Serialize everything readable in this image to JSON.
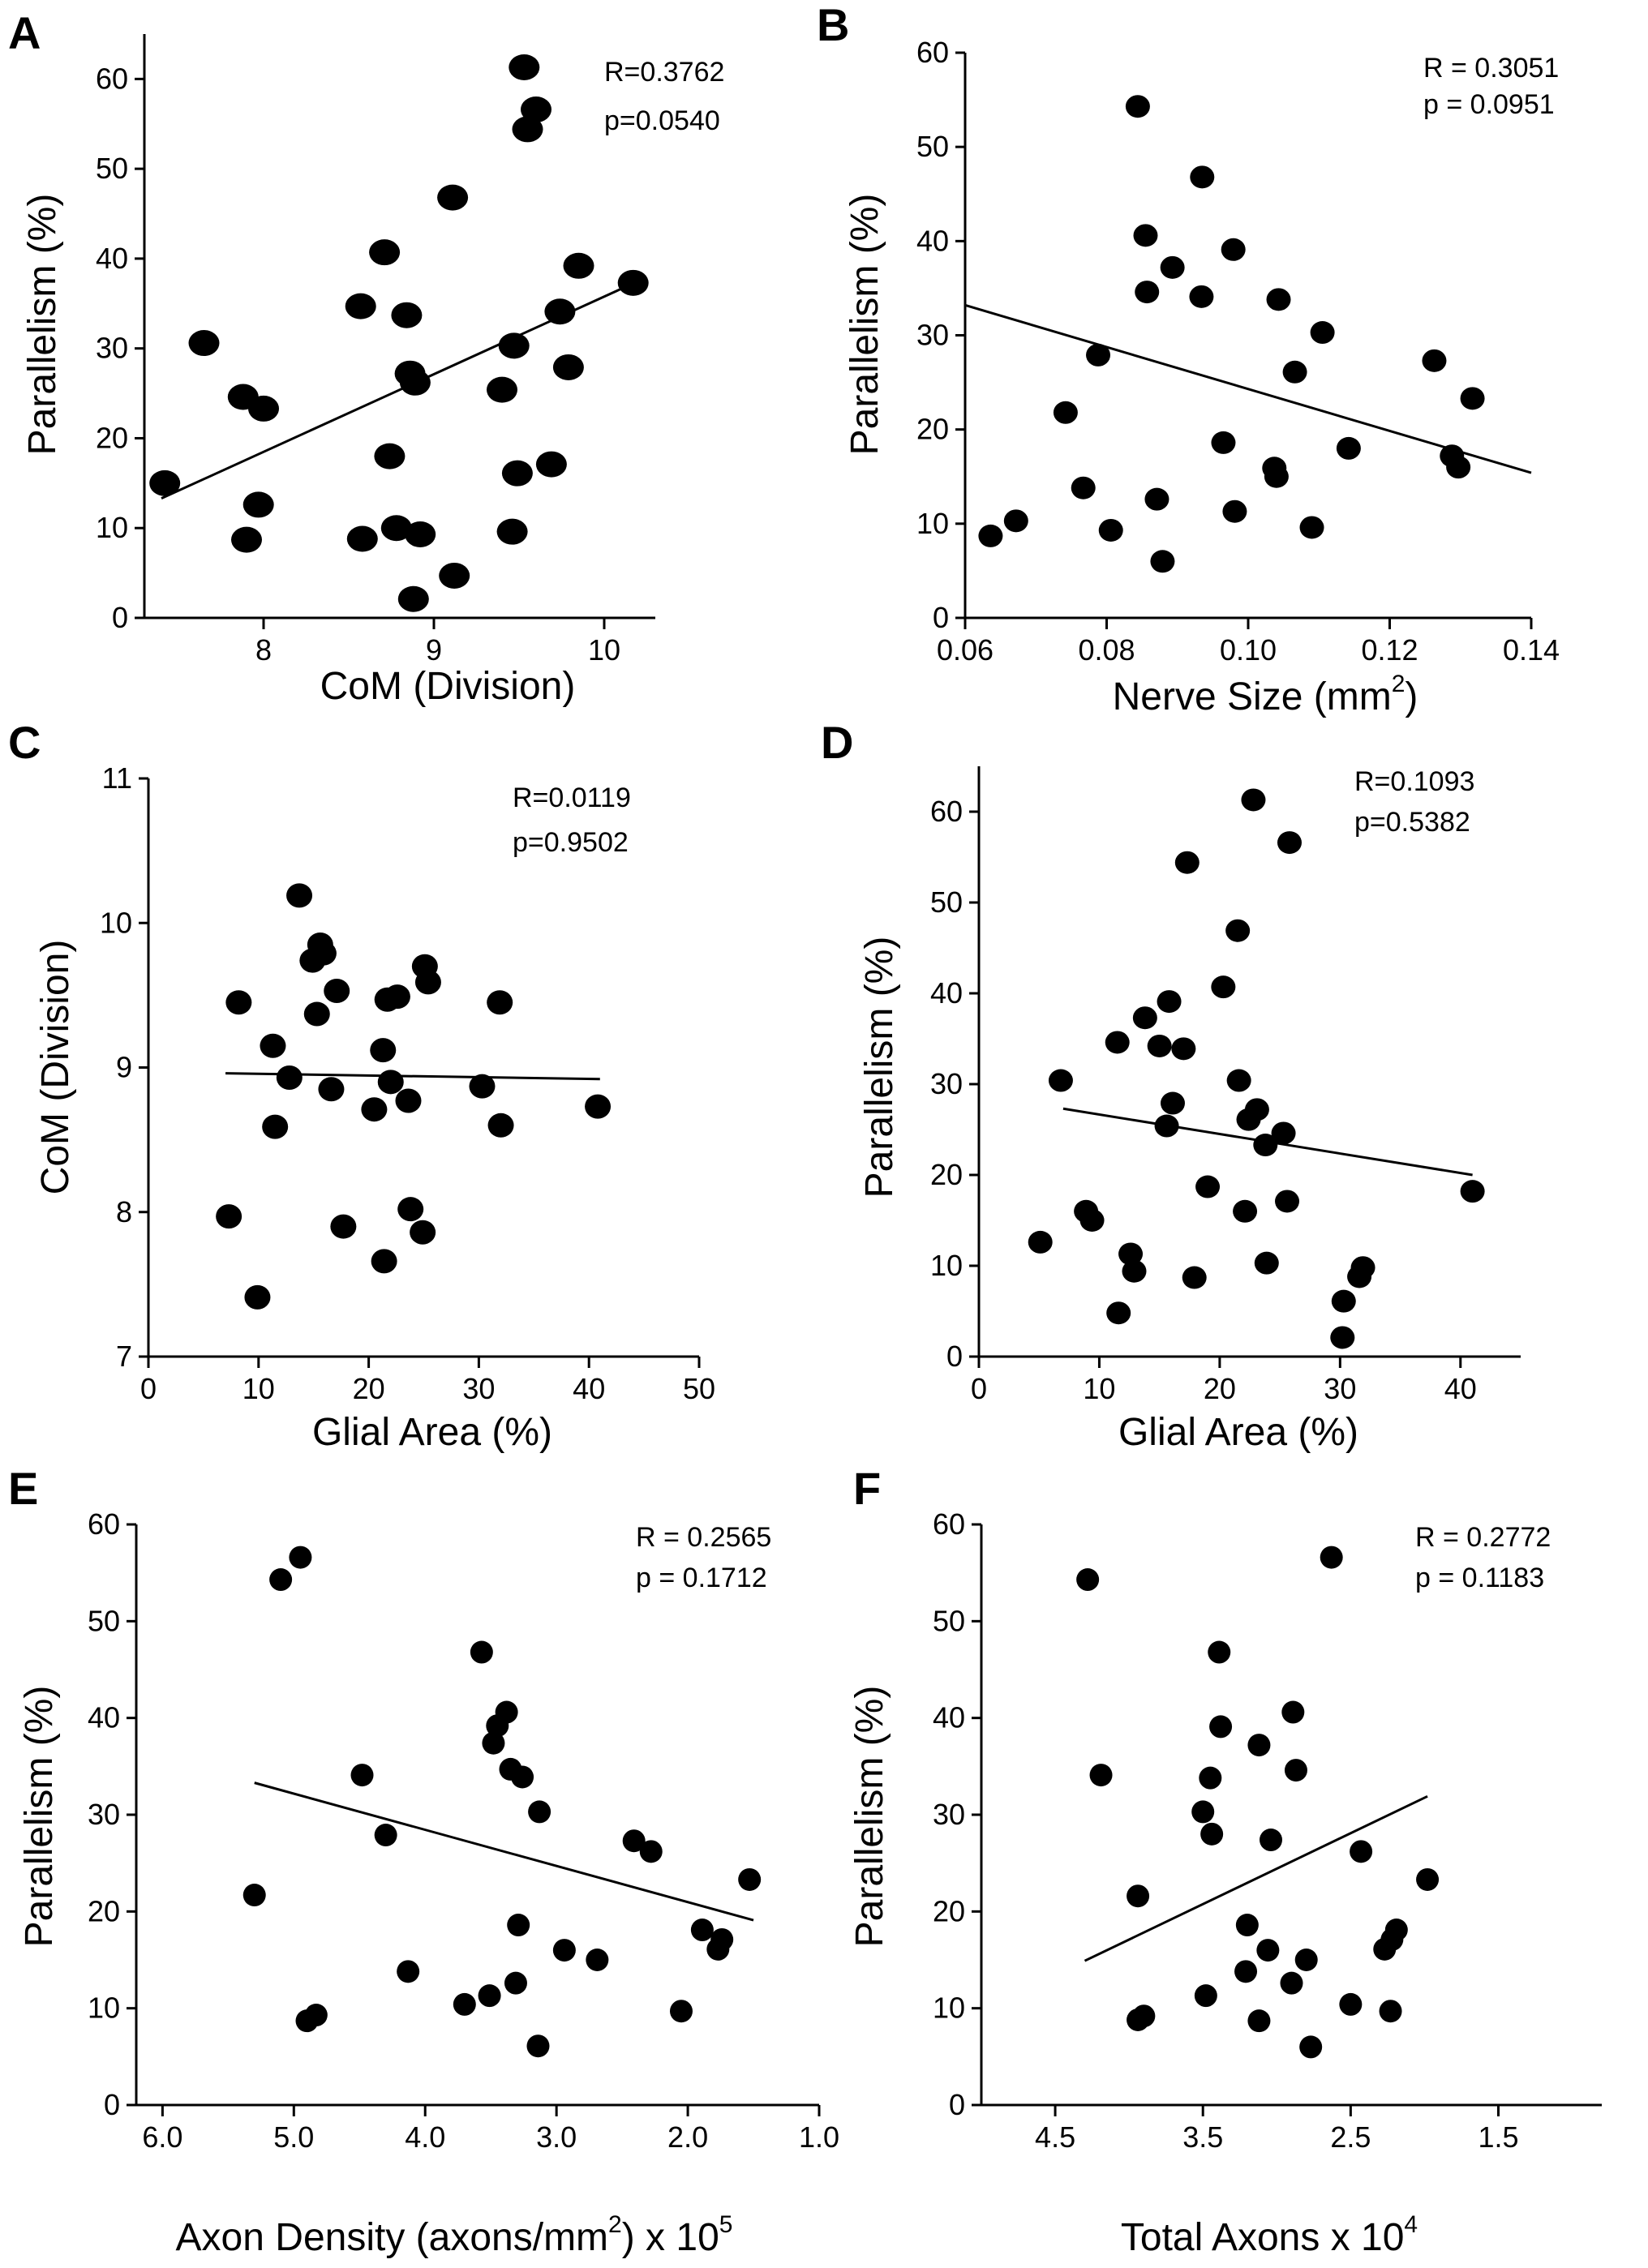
{
  "chart_data": [
    {
      "id": "A",
      "type": "scatter",
      "panel_label": "A",
      "xlabel": "CoM (Division)",
      "ylabel": "Parallelism (%)",
      "stat_r": "R=0.3762",
      "stat_p": "p=0.0540",
      "xlim": [
        7.3,
        10.3
      ],
      "ylim": [
        0,
        65
      ],
      "xticks": [
        8,
        9,
        10
      ],
      "xtick_labels": [
        "8",
        "9",
        "10"
      ],
      "yticks": [
        0,
        10,
        20,
        30,
        40,
        50,
        60
      ],
      "ytick_labels": [
        "0",
        "10",
        "20",
        "30",
        "40",
        "50",
        "60"
      ],
      "fit": [
        [
          7.4,
          13.3
        ],
        [
          10.2,
          37.5
        ]
      ],
      "points": [
        [
          7.42,
          15.0
        ],
        [
          7.65,
          30.6
        ],
        [
          7.88,
          24.6
        ],
        [
          7.9,
          8.7
        ],
        [
          7.97,
          12.6
        ],
        [
          8.0,
          23.3
        ],
        [
          8.57,
          34.7
        ],
        [
          8.58,
          8.8
        ],
        [
          8.71,
          40.7
        ],
        [
          8.74,
          18.0
        ],
        [
          8.78,
          10.0
        ],
        [
          8.84,
          33.7
        ],
        [
          8.86,
          27.2
        ],
        [
          8.88,
          2.1
        ],
        [
          8.89,
          26.2
        ],
        [
          8.92,
          9.3
        ],
        [
          9.11,
          46.8
        ],
        [
          9.12,
          4.7
        ],
        [
          9.4,
          25.4
        ],
        [
          9.46,
          9.6
        ],
        [
          9.47,
          30.3
        ],
        [
          9.49,
          16.1
        ],
        [
          9.53,
          61.3
        ],
        [
          9.55,
          54.4
        ],
        [
          9.6,
          56.6
        ],
        [
          9.69,
          17.1
        ],
        [
          9.74,
          34.1
        ],
        [
          9.79,
          27.9
        ],
        [
          9.85,
          39.2
        ],
        [
          10.17,
          37.3
        ]
      ]
    },
    {
      "id": "B",
      "type": "scatter",
      "panel_label": "B",
      "xlabel": "Nerve Size (mm",
      "xlabel_sup": "2",
      "xlabel_end": ")",
      "ylabel": "Parallelism (%)",
      "stat_r": "R = 0.3051",
      "stat_p": "p = 0.0951",
      "xlim": [
        0.06,
        0.14
      ],
      "ylim": [
        0,
        60
      ],
      "xticks": [
        0.06,
        0.08,
        0.1,
        0.12,
        0.14
      ],
      "xtick_labels": [
        "0.06",
        "0.08",
        "0.10",
        "0.12",
        "0.14"
      ],
      "yticks": [
        0,
        10,
        20,
        30,
        40,
        50,
        60
      ],
      "ytick_labels": [
        "0",
        "10",
        "20",
        "30",
        "40",
        "50",
        "60"
      ],
      "fit": [
        [
          0.06,
          33.2
        ],
        [
          0.14,
          15.4
        ]
      ],
      "points": [
        [
          0.0636,
          8.7
        ],
        [
          0.0672,
          10.3
        ],
        [
          0.0742,
          21.8
        ],
        [
          0.0767,
          13.8
        ],
        [
          0.0788,
          27.9
        ],
        [
          0.0806,
          9.3
        ],
        [
          0.0844,
          54.3
        ],
        [
          0.0855,
          40.6
        ],
        [
          0.0857,
          34.6
        ],
        [
          0.0871,
          12.6
        ],
        [
          0.0879,
          6.0
        ],
        [
          0.0893,
          37.2
        ],
        [
          0.0935,
          46.8
        ],
        [
          0.0934,
          34.1
        ],
        [
          0.0965,
          18.6
        ],
        [
          0.0979,
          39.1
        ],
        [
          0.0981,
          11.3
        ],
        [
          0.1037,
          15.9
        ],
        [
          0.104,
          15.0
        ],
        [
          0.1043,
          33.8
        ],
        [
          0.1066,
          26.1
        ],
        [
          0.109,
          9.6
        ],
        [
          0.1105,
          30.3
        ],
        [
          0.1142,
          18.0
        ],
        [
          0.1263,
          27.3
        ],
        [
          0.1288,
          17.2
        ],
        [
          0.1297,
          16.0
        ],
        [
          0.1317,
          23.3
        ]
      ]
    },
    {
      "id": "C",
      "type": "scatter",
      "panel_label": "C",
      "xlabel": "Glial Area (%)",
      "ylabel": "CoM (Division)",
      "stat_r": "R=0.0119",
      "stat_p": "p=0.9502",
      "xlim": [
        0,
        50
      ],
      "ylim": [
        7,
        11
      ],
      "xticks": [
        0,
        10,
        20,
        30,
        40,
        50
      ],
      "xtick_labels": [
        "0",
        "10",
        "20",
        "30",
        "40",
        "50"
      ],
      "yticks": [
        7,
        8,
        9,
        10,
        11
      ],
      "ytick_labels": [
        "7",
        "8",
        "9",
        "10",
        "11"
      ],
      "fit": [
        [
          7.0,
          8.96
        ],
        [
          41.0,
          8.92
        ]
      ],
      "points": [
        [
          7.3,
          7.97
        ],
        [
          8.2,
          9.45
        ],
        [
          9.9,
          7.41
        ],
        [
          11.3,
          9.15
        ],
        [
          11.5,
          8.59
        ],
        [
          12.8,
          8.93
        ],
        [
          13.7,
          10.19
        ],
        [
          14.9,
          9.74
        ],
        [
          15.3,
          9.37
        ],
        [
          15.6,
          9.85
        ],
        [
          15.9,
          9.79
        ],
        [
          16.6,
          8.85
        ],
        [
          17.1,
          9.53
        ],
        [
          17.7,
          7.9
        ],
        [
          20.5,
          8.71
        ],
        [
          21.3,
          9.12
        ],
        [
          21.4,
          7.66
        ],
        [
          21.7,
          9.47
        ],
        [
          22.0,
          8.9
        ],
        [
          22.6,
          9.49
        ],
        [
          23.6,
          8.77
        ],
        [
          23.8,
          8.02
        ],
        [
          24.9,
          7.86
        ],
        [
          25.1,
          9.7
        ],
        [
          25.4,
          9.59
        ],
        [
          30.3,
          8.87
        ],
        [
          31.9,
          9.45
        ],
        [
          32.0,
          8.6
        ],
        [
          40.8,
          8.73
        ]
      ]
    },
    {
      "id": "D",
      "type": "scatter",
      "panel_label": "D",
      "xlabel": "Glial Area (%)",
      "ylabel": "Parallelism (%)",
      "stat_r": "R=0.1093",
      "stat_p": "p=0.5382",
      "xlim": [
        0,
        45
      ],
      "ylim": [
        0,
        65
      ],
      "xticks": [
        0,
        10,
        20,
        30,
        40
      ],
      "xtick_labels": [
        "0",
        "10",
        "20",
        "30",
        "40"
      ],
      "yticks": [
        0,
        10,
        20,
        30,
        40,
        50,
        60
      ],
      "ytick_labels": [
        "0",
        "10",
        "20",
        "30",
        "40",
        "50",
        "60"
      ],
      "fit": [
        [
          7.0,
          27.3
        ],
        [
          41.0,
          20.0
        ]
      ],
      "points": [
        [
          5.1,
          12.6
        ],
        [
          6.8,
          30.4
        ],
        [
          8.9,
          16.0
        ],
        [
          9.4,
          15.0
        ],
        [
          11.5,
          34.6
        ],
        [
          11.6,
          4.8
        ],
        [
          12.6,
          11.3
        ],
        [
          12.9,
          9.4
        ],
        [
          13.8,
          37.3
        ],
        [
          15.0,
          34.2
        ],
        [
          15.6,
          25.4
        ],
        [
          15.8,
          39.1
        ],
        [
          16.1,
          27.9
        ],
        [
          17.0,
          33.9
        ],
        [
          17.3,
          54.4
        ],
        [
          17.9,
          8.7
        ],
        [
          19.0,
          18.7
        ],
        [
          20.3,
          40.7
        ],
        [
          21.5,
          46.9
        ],
        [
          21.6,
          30.4
        ],
        [
          22.1,
          16.0
        ],
        [
          22.4,
          26.1
        ],
        [
          22.8,
          61.3
        ],
        [
          23.1,
          27.2
        ],
        [
          23.8,
          23.3
        ],
        [
          23.9,
          10.3
        ],
        [
          25.3,
          24.6
        ],
        [
          25.6,
          17.1
        ],
        [
          25.8,
          56.6
        ],
        [
          30.2,
          2.1
        ],
        [
          30.3,
          6.1
        ],
        [
          31.6,
          8.8
        ],
        [
          31.9,
          9.8
        ],
        [
          41.0,
          18.2
        ]
      ]
    },
    {
      "id": "E",
      "type": "scatter",
      "panel_label": "E",
      "xlabel": "Axon Density (axons/mm",
      "xlabel_sup": "2",
      "xlabel_end": ") x 10",
      "xlabel_sup2": "5",
      "ylabel": "Parallelism (%)",
      "stat_r": "R = 0.2565",
      "stat_p": "p = 0.1712",
      "xlim": [
        6.2,
        1.0
      ],
      "ylim": [
        0,
        60
      ],
      "xticks": [
        6.0,
        5.0,
        4.0,
        3.0,
        2.0,
        1.0
      ],
      "xtick_labels": [
        "6.0",
        "5.0",
        "4.0",
        "3.0",
        "2.0",
        "1.0"
      ],
      "yticks": [
        0,
        10,
        20,
        30,
        40,
        50,
        60
      ],
      "ytick_labels": [
        "0",
        "10",
        "20",
        "30",
        "40",
        "50",
        "60"
      ],
      "fit": [
        [
          5.3,
          33.3
        ],
        [
          1.5,
          19.1
        ]
      ],
      "points": [
        [
          5.3,
          21.7
        ],
        [
          5.1,
          54.3
        ],
        [
          4.95,
          56.6
        ],
        [
          4.9,
          8.7
        ],
        [
          4.83,
          9.3
        ],
        [
          4.48,
          34.1
        ],
        [
          4.3,
          27.9
        ],
        [
          4.13,
          13.8
        ],
        [
          3.7,
          10.4
        ],
        [
          3.57,
          46.8
        ],
        [
          3.51,
          11.3
        ],
        [
          3.48,
          37.4
        ],
        [
          3.45,
          39.2
        ],
        [
          3.38,
          40.6
        ],
        [
          3.35,
          34.7
        ],
        [
          3.31,
          12.6
        ],
        [
          3.29,
          18.6
        ],
        [
          3.26,
          33.9
        ],
        [
          3.14,
          6.1
        ],
        [
          3.13,
          30.3
        ],
        [
          2.94,
          16.0
        ],
        [
          2.69,
          15.0
        ],
        [
          2.41,
          27.3
        ],
        [
          2.28,
          26.2
        ],
        [
          2.05,
          9.7
        ],
        [
          1.89,
          18.1
        ],
        [
          1.77,
          16.1
        ],
        [
          1.74,
          17.1
        ],
        [
          1.53,
          23.3
        ]
      ]
    },
    {
      "id": "F",
      "type": "scatter",
      "panel_label": "F",
      "xlabel": "Total Axons x 10",
      "xlabel_sup": "4",
      "ylabel": "Parallelism (%)",
      "stat_r": "R = 0.2772",
      "stat_p": "p = 0.1183",
      "xlim": [
        5.0,
        0.8
      ],
      "ylim": [
        0,
        60
      ],
      "xticks": [
        4.5,
        3.5,
        2.5,
        1.5
      ],
      "xtick_labels": [
        "4.5",
        "3.5",
        "2.5",
        "1.5"
      ],
      "yticks": [
        0,
        10,
        20,
        30,
        40,
        50,
        60
      ],
      "ytick_labels": [
        "0",
        "10",
        "20",
        "30",
        "40",
        "50",
        "60"
      ],
      "fit": [
        [
          4.3,
          14.9
        ],
        [
          1.98,
          31.9
        ]
      ],
      "points": [
        [
          4.28,
          54.3
        ],
        [
          4.19,
          34.1
        ],
        [
          3.94,
          21.6
        ],
        [
          3.94,
          8.8
        ],
        [
          3.9,
          9.2
        ],
        [
          3.5,
          30.3
        ],
        [
          3.48,
          11.3
        ],
        [
          3.45,
          33.8
        ],
        [
          3.44,
          28.0
        ],
        [
          3.39,
          46.8
        ],
        [
          3.38,
          39.1
        ],
        [
          3.2,
          18.6
        ],
        [
          3.21,
          13.8
        ],
        [
          3.12,
          8.7
        ],
        [
          3.12,
          37.2
        ],
        [
          3.06,
          16.0
        ],
        [
          3.04,
          27.4
        ],
        [
          2.9,
          12.6
        ],
        [
          2.89,
          40.6
        ],
        [
          2.87,
          34.6
        ],
        [
          2.8,
          15.0
        ],
        [
          2.77,
          6.0
        ],
        [
          2.63,
          56.6
        ],
        [
          2.5,
          10.4
        ],
        [
          2.43,
          26.2
        ],
        [
          2.27,
          16.1
        ],
        [
          2.23,
          9.7
        ],
        [
          2.19,
          18.1
        ],
        [
          2.22,
          17.1
        ],
        [
          1.98,
          23.3
        ]
      ]
    }
  ]
}
